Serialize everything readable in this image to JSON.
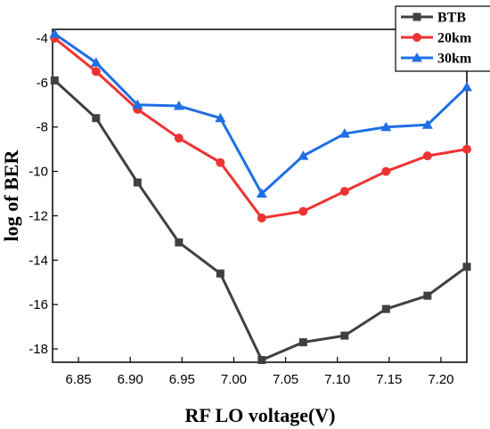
{
  "chart_data": {
    "type": "line",
    "xlabel": "RF LO voltage(V)",
    "ylabel": "log of BER",
    "xlim": [
      6.825,
      7.225
    ],
    "ylim": [
      -18.6,
      -3.6
    ],
    "xticks": [
      6.85,
      6.9,
      6.95,
      7.0,
      7.05,
      7.1,
      7.15,
      7.2
    ],
    "xtick_labels": [
      "6.85",
      "6.90",
      "6.95",
      "7.00",
      "7.05",
      "7.10",
      "7.15",
      "7.20"
    ],
    "yticks": [
      -4,
      -6,
      -8,
      -10,
      -12,
      -14,
      -16,
      -18
    ],
    "ytick_labels": [
      "-4",
      "-6",
      "-8",
      "-10",
      "-12",
      "-14",
      "-16",
      "-18"
    ],
    "x": [
      6.827,
      6.867,
      6.907,
      6.947,
      6.987,
      7.027,
      7.067,
      7.107,
      7.147,
      7.187,
      7.225
    ],
    "legend_position": "top-right",
    "series": [
      {
        "name": "BTB",
        "color": "#404040",
        "marker": "square",
        "values": [
          -5.9,
          -7.6,
          -10.5,
          -13.2,
          -14.6,
          -18.5,
          -17.7,
          -17.4,
          -16.2,
          -15.6,
          -14.3
        ]
      },
      {
        "name": "20km",
        "color": "#ee3333",
        "marker": "circle",
        "values": [
          -4.0,
          -5.5,
          -7.2,
          -8.5,
          -9.6,
          -12.1,
          -11.8,
          -10.9,
          -10.0,
          -9.3,
          -9.0
        ]
      },
      {
        "name": "30km",
        "color": "#1f6fe5",
        "marker": "triangle",
        "values": [
          -3.8,
          -5.1,
          -7.0,
          -7.05,
          -7.6,
          -11.0,
          -9.3,
          -8.3,
          -8.0,
          -7.9,
          -6.2
        ]
      }
    ]
  }
}
